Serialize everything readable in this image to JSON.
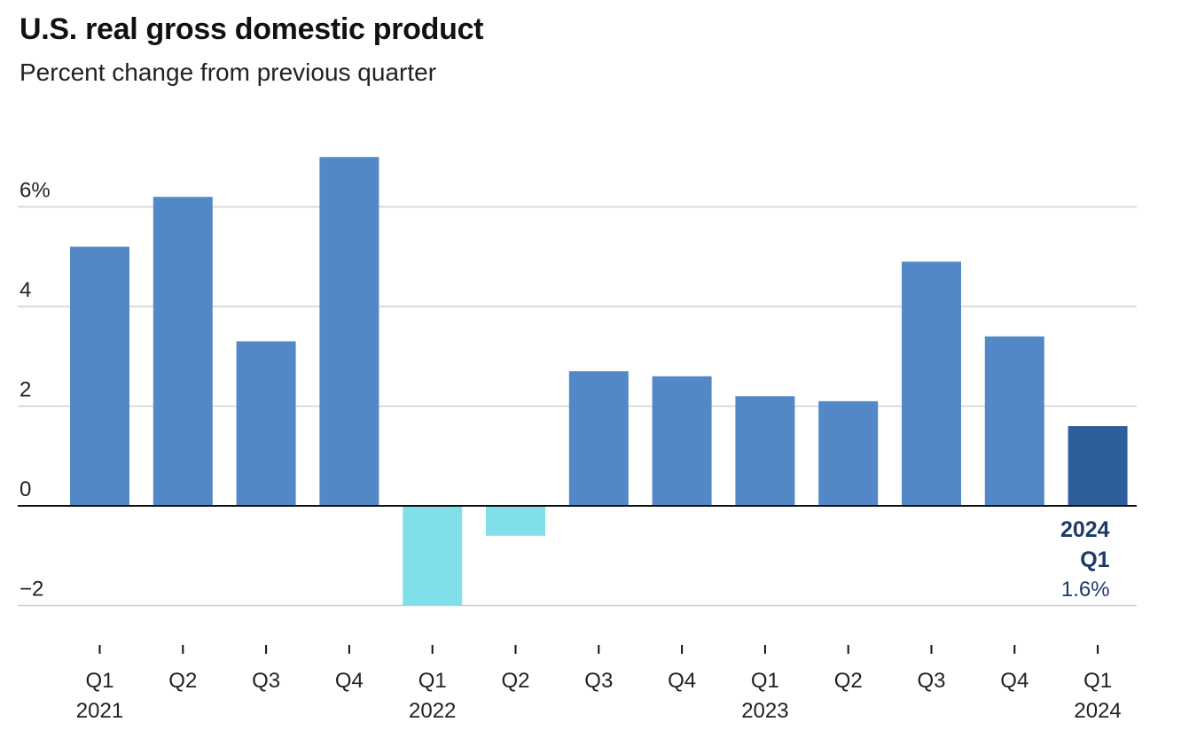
{
  "header": {
    "title": "U.S. real gross domestic product",
    "subtitle": "Percent change from previous quarter"
  },
  "colors": {
    "positive_bar": "#5288c6",
    "negative_bar": "#81dfe9",
    "highlight_bar": "#2f5e9c",
    "highlight_text": "#1d3a6b",
    "gridline": "#cfcfcf",
    "axis": "#111111",
    "text": "#222222"
  },
  "chart_data": {
    "type": "bar",
    "title": "U.S. real gross domestic product",
    "subtitle": "Percent change from previous quarter",
    "categories": [
      "Q1 2021",
      "Q2 2021",
      "Q3 2021",
      "Q4 2021",
      "Q1 2022",
      "Q2 2022",
      "Q3 2022",
      "Q4 2022",
      "Q1 2023",
      "Q2 2023",
      "Q3 2023",
      "Q4 2023",
      "Q1 2024"
    ],
    "x_tick_labels": [
      {
        "quarter": "Q1",
        "year": "2021"
      },
      {
        "quarter": "Q2",
        "year": ""
      },
      {
        "quarter": "Q3",
        "year": ""
      },
      {
        "quarter": "Q4",
        "year": ""
      },
      {
        "quarter": "Q1",
        "year": "2022"
      },
      {
        "quarter": "Q2",
        "year": ""
      },
      {
        "quarter": "Q3",
        "year": ""
      },
      {
        "quarter": "Q4",
        "year": ""
      },
      {
        "quarter": "Q1",
        "year": "2023"
      },
      {
        "quarter": "Q2",
        "year": ""
      },
      {
        "quarter": "Q3",
        "year": ""
      },
      {
        "quarter": "Q4",
        "year": ""
      },
      {
        "quarter": "Q1",
        "year": "2024"
      }
    ],
    "values": [
      5.2,
      6.2,
      3.3,
      7.0,
      -2.0,
      -0.6,
      2.7,
      2.6,
      2.2,
      2.1,
      4.9,
      3.4,
      1.6
    ],
    "ylim": [
      -2,
      7
    ],
    "y_ticks": [
      {
        "value": 6,
        "label": "6%"
      },
      {
        "value": 4,
        "label": "4"
      },
      {
        "value": 2,
        "label": "2"
      },
      {
        "value": 0,
        "label": "0"
      },
      {
        "value": -2,
        "label": "−2"
      }
    ],
    "grid": true,
    "highlight": {
      "index": 12,
      "line1": "2024",
      "line2": "Q1",
      "value_label": "1.6%"
    },
    "xlabel": "",
    "ylabel": ""
  }
}
